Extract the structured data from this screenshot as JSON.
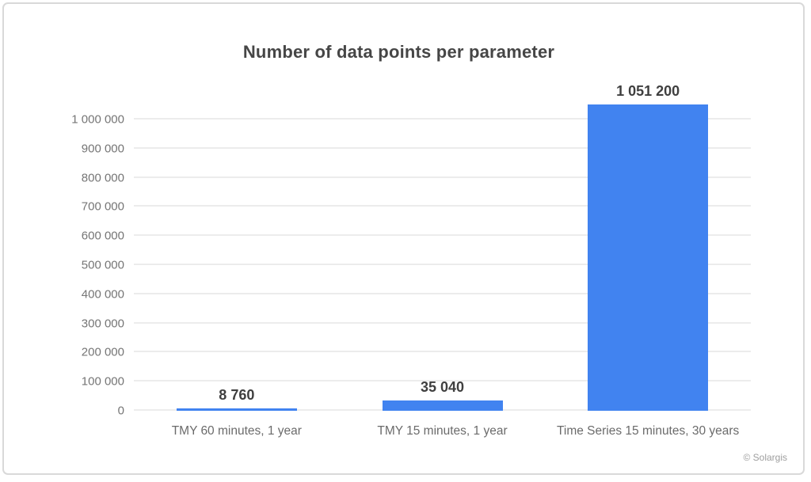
{
  "chart_data": {
    "type": "bar",
    "title": "Number of data points per parameter",
    "categories": [
      "TMY 60 minutes, 1 year",
      "TMY 15 minutes, 1 year",
      "Time Series 15 minutes, 30 years"
    ],
    "values": [
      8760,
      35040,
      1051200
    ],
    "value_labels": [
      "8 760",
      "35 040",
      "1 051 200"
    ],
    "xlabel": "",
    "ylabel": "",
    "ylim": [
      0,
      1000000
    ],
    "y_tick_step": 100000,
    "y_tick_labels": [
      "0",
      "100 000",
      "200 000",
      "300 000",
      "400 000",
      "500 000",
      "600 000",
      "700 000",
      "800 000",
      "900 000",
      "1 000 000"
    ],
    "grid": "horizontal",
    "legend_position": "none",
    "bar_color": "#4183f0"
  },
  "footer": {
    "credit": "© Solargis"
  }
}
